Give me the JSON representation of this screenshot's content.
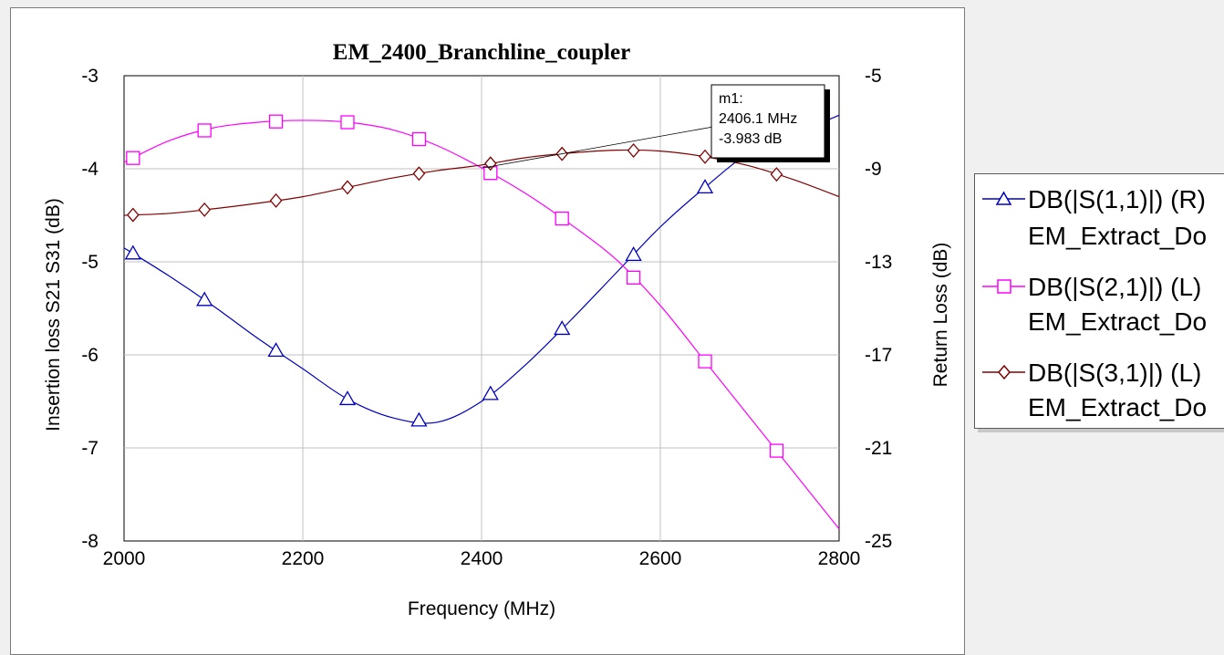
{
  "chart_data": {
    "type": "line",
    "title": "EM_2400_Branchline_coupler",
    "xlabel": "Frequency (MHz)",
    "ylabel_left": "Insertion loss S21 S31 (dB)",
    "ylabel_right": "Return Loss (dB)",
    "xlim": [
      2000,
      2800
    ],
    "ylim_left": [
      -8,
      -3
    ],
    "ylim_right": [
      -25,
      -5
    ],
    "x_ticks": [
      "2000",
      "2200",
      "2400",
      "2600",
      "2800"
    ],
    "y_ticks_left": [
      "-3",
      "-4",
      "-5",
      "-6",
      "-7",
      "-8"
    ],
    "y_ticks_right": [
      "-5",
      "-9",
      "-13",
      "-17",
      "-21",
      "-25"
    ],
    "grid": true,
    "legend_position": "right",
    "series": [
      {
        "name": "DB(|S(1,1)|) (R)",
        "source": "EM_Extract_Do",
        "axis": "right",
        "color": "#0000c0",
        "marker": "triangle",
        "x": [
          2000,
          2050,
          2100,
          2150,
          2200,
          2250,
          2300,
          2350,
          2400,
          2450,
          2500,
          2550,
          2600,
          2650,
          2700,
          2750,
          2800
        ],
        "y": [
          -12.4,
          -13.6,
          -14.9,
          -16.3,
          -17.6,
          -18.9,
          -19.7,
          -19.9,
          -19.0,
          -17.4,
          -15.5,
          -13.5,
          -11.5,
          -9.8,
          -8.3,
          -7.5,
          -6.7
        ]
      },
      {
        "name": "DB(|S(2,1)|) (L)",
        "source": "EM_Extract_Do",
        "axis": "left",
        "color": "#ff00ff",
        "marker": "square",
        "x": [
          2000,
          2050,
          2100,
          2150,
          2200,
          2250,
          2300,
          2350,
          2400,
          2450,
          2500,
          2550,
          2600,
          2650,
          2700,
          2750,
          2800
        ],
        "y": [
          -3.93,
          -3.7,
          -3.56,
          -3.5,
          -3.48,
          -3.5,
          -3.58,
          -3.75,
          -3.99,
          -4.27,
          -4.6,
          -4.97,
          -5.47,
          -6.07,
          -6.67,
          -7.27,
          -7.87
        ]
      },
      {
        "name": "DB(|S(3,1)|) (L)",
        "source": "EM_Extract_Do",
        "axis": "left",
        "color": "#800000",
        "marker": "diamond",
        "x": [
          2000,
          2050,
          2100,
          2150,
          2200,
          2250,
          2300,
          2350,
          2400,
          2450,
          2500,
          2550,
          2600,
          2650,
          2700,
          2750,
          2800
        ],
        "y": [
          -4.5,
          -4.48,
          -4.43,
          -4.37,
          -4.3,
          -4.2,
          -4.1,
          -4.02,
          -3.96,
          -3.88,
          -3.83,
          -3.8,
          -3.81,
          -3.87,
          -3.97,
          -4.12,
          -4.3
        ]
      }
    ],
    "marker_series": [
      0,
      2,
      1
    ],
    "marker": {
      "label": "m1:",
      "freq_text": "2406.1 MHz",
      "value_text": "-3.983 dB",
      "x": 2406.1,
      "y": -3.983
    }
  }
}
